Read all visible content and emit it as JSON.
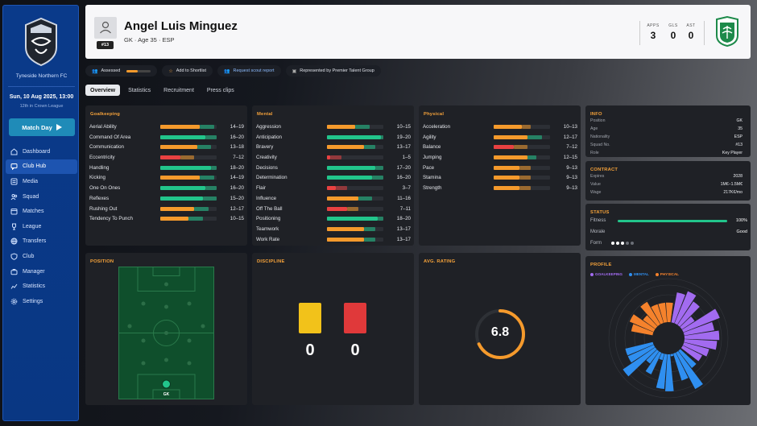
{
  "club": {
    "name": "Tyneside Northern FC"
  },
  "date": {
    "main": "Sun, 10 Aug 2025, 13:00",
    "sub": "12th in Crown League"
  },
  "match_button": {
    "label": "Match Day",
    "icon": "play-icon"
  },
  "nav": [
    {
      "label": "Dashboard",
      "icon": "dashboard-icon",
      "active": false
    },
    {
      "label": "Club Hub",
      "icon": "chat-icon",
      "active": true
    },
    {
      "label": "Media",
      "icon": "media-icon",
      "active": false
    },
    {
      "label": "Squad",
      "icon": "squad-icon",
      "active": false
    },
    {
      "label": "Matches",
      "icon": "calendar-icon",
      "active": false
    },
    {
      "label": "League",
      "icon": "trophy-icon",
      "active": false
    },
    {
      "label": "Transfers",
      "icon": "globe-icon",
      "active": false
    },
    {
      "label": "Club",
      "icon": "shield-icon",
      "active": false
    },
    {
      "label": "Manager",
      "icon": "briefcase-icon",
      "active": false
    },
    {
      "label": "Statistics",
      "icon": "chart-icon",
      "active": false
    },
    {
      "label": "Settings",
      "icon": "gear-icon",
      "active": false
    }
  ],
  "player": {
    "name": "Angel Luis Minguez",
    "sub": "GK · Age 35 · ESP",
    "number": "#13",
    "stats": [
      {
        "label": "APPS",
        "value": "3"
      },
      {
        "label": "GLS",
        "value": "0"
      },
      {
        "label": "AST",
        "value": "0"
      }
    ]
  },
  "actions": {
    "assessed": "Assessed",
    "assessed_level": 0.45,
    "shortlist": "Add to Shortlist",
    "scout": "Request scout report",
    "represented": "Represented by Premier Talent Group"
  },
  "tabs": [
    "Overview",
    "Statistics",
    "Recruitment",
    "Press clips"
  ],
  "colors": {
    "green": "#22c58b",
    "orange": "#f59a2c",
    "red": "#e84141",
    "purple": "#a26bf0",
    "blue": "#2f8ff0"
  },
  "goalkeeping": {
    "title": "Goalkeeping",
    "attributes": [
      {
        "name": "Aerial Ability",
        "range": "14–19",
        "cur": 14,
        "pot": 19
      },
      {
        "name": "Command Of Area",
        "range": "16–20",
        "cur": 16,
        "pot": 20
      },
      {
        "name": "Communication",
        "range": "13–18",
        "cur": 13,
        "pot": 18
      },
      {
        "name": "Eccentricity",
        "range": "7–12",
        "cur": 7,
        "pot": 12
      },
      {
        "name": "Handling",
        "range": "18–20",
        "cur": 18,
        "pot": 20
      },
      {
        "name": "Kicking",
        "range": "14–19",
        "cur": 14,
        "pot": 19
      },
      {
        "name": "One On Ones",
        "range": "16–20",
        "cur": 16,
        "pot": 20
      },
      {
        "name": "Reflexes",
        "range": "15–20",
        "cur": 15,
        "pot": 20
      },
      {
        "name": "Rushing Out",
        "range": "12–17",
        "cur": 12,
        "pot": 17
      },
      {
        "name": "Tendency To Punch",
        "range": "10–15",
        "cur": 10,
        "pot": 15
      }
    ]
  },
  "mental": {
    "title": "Mental",
    "attributes": [
      {
        "name": "Aggression",
        "range": "10–15",
        "cur": 10,
        "pot": 15
      },
      {
        "name": "Anticipation",
        "range": "19–20",
        "cur": 19,
        "pot": 20
      },
      {
        "name": "Bravery",
        "range": "13–17",
        "cur": 13,
        "pot": 17
      },
      {
        "name": "Creativity",
        "range": "1–5",
        "cur": 1,
        "pot": 5
      },
      {
        "name": "Decisions",
        "range": "17–20",
        "cur": 17,
        "pot": 20
      },
      {
        "name": "Determination",
        "range": "16–20",
        "cur": 16,
        "pot": 20
      },
      {
        "name": "Flair",
        "range": "3–7",
        "cur": 3,
        "pot": 7
      },
      {
        "name": "Influence",
        "range": "11–16",
        "cur": 11,
        "pot": 16
      },
      {
        "name": "Off The Ball",
        "range": "7–11",
        "cur": 7,
        "pot": 11
      },
      {
        "name": "Positioning",
        "range": "18–20",
        "cur": 18,
        "pot": 20
      },
      {
        "name": "Teamwork",
        "range": "13–17",
        "cur": 13,
        "pot": 17
      },
      {
        "name": "Work Rate",
        "range": "13–17",
        "cur": 13,
        "pot": 17
      }
    ]
  },
  "physical": {
    "title": "Physical",
    "attributes": [
      {
        "name": "Acceleration",
        "range": "10–13",
        "cur": 10,
        "pot": 13
      },
      {
        "name": "Agility",
        "range": "12–17",
        "cur": 12,
        "pot": 17
      },
      {
        "name": "Balance",
        "range": "7–12",
        "cur": 7,
        "pot": 12
      },
      {
        "name": "Jumping",
        "range": "12–15",
        "cur": 12,
        "pot": 15
      },
      {
        "name": "Pace",
        "range": "9–13",
        "cur": 9,
        "pot": 13
      },
      {
        "name": "Stamina",
        "range": "9–13",
        "cur": 9,
        "pot": 13
      },
      {
        "name": "Strength",
        "range": "9–13",
        "cur": 9,
        "pot": 13
      }
    ]
  },
  "info": {
    "title": "INFO",
    "rows": [
      {
        "k": "Position",
        "v": "GK"
      },
      {
        "k": "Age",
        "v": "35"
      },
      {
        "k": "Nationality",
        "v": "ESP"
      },
      {
        "k": "Squad No.",
        "v": "#13"
      },
      {
        "k": "Role",
        "v": "Key Player"
      }
    ]
  },
  "contract": {
    "title": "CONTRACT",
    "rows": [
      {
        "k": "Expires",
        "v": "2028"
      },
      {
        "k": "Value",
        "v": "1M€–1.5M€"
      },
      {
        "k": "Wage",
        "v": "217K€/mo"
      }
    ]
  },
  "status": {
    "title": "STATUS",
    "fitness_label": "Fitness",
    "fitness_value": "100%",
    "fitness_level": 1.0,
    "morale_label": "Morale",
    "morale_value": "Good",
    "form_label": "Form",
    "form_filled": 3,
    "form_total": 5
  },
  "position": {
    "title": "POSITION",
    "marker_label": "GK"
  },
  "discipline": {
    "title": "DISCIPLINE",
    "yellow": "0",
    "red": "0"
  },
  "rating": {
    "title": "AVG. RATING",
    "value": "6.8",
    "level": 0.68
  },
  "profile": {
    "title": "PROFILE",
    "legend": [
      {
        "label": "GOALKEEPING",
        "color": "#a26bf0"
      },
      {
        "label": "MENTAL",
        "color": "#2f8ff0"
      },
      {
        "label": "PHYSICAL",
        "color": "#f5822c"
      }
    ]
  }
}
